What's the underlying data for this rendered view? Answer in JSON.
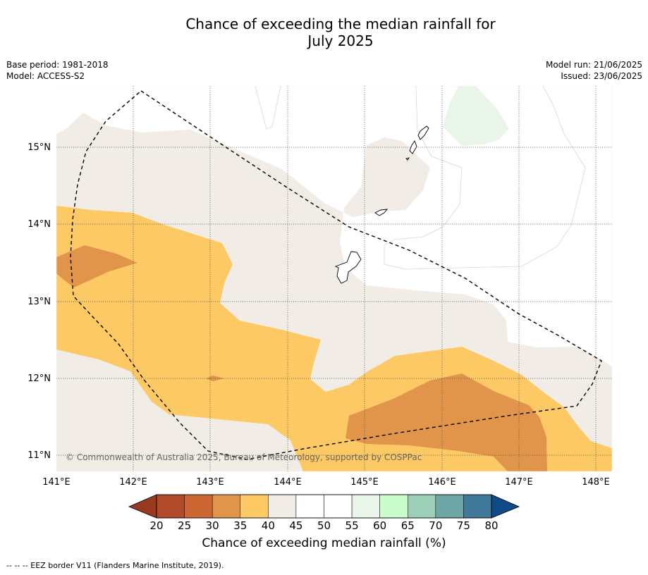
{
  "title": {
    "line1": "Chance of exceeding the median rainfall for",
    "line2": "July 2025"
  },
  "meta": {
    "base_period": "Base period: 1981-2018",
    "model": "Model: ACCESS-S2",
    "model_run": "Model run: 21/06/2025",
    "issued": "Issued: 23/06/2025"
  },
  "map": {
    "lat_ticks": [
      "15°N",
      "14°N",
      "13°N",
      "12°N",
      "11°N"
    ],
    "lon_ticks": [
      "141°E",
      "142°E",
      "143°E",
      "144°E",
      "145°E",
      "146°E",
      "147°E",
      "148°E"
    ],
    "copyright": "© Commonwealth of Australia 2025, Bureau of Meteorology, supported by COSPPac"
  },
  "colorbar": {
    "labels": [
      "20",
      "25",
      "30",
      "35",
      "40",
      "45",
      "50",
      "55",
      "60",
      "65",
      "70",
      "75",
      "80"
    ],
    "colors": [
      "#b04a28",
      "#cc6633",
      "#e0954a",
      "#fdc964",
      "#f1ece6",
      "#ffffff",
      "#ffffff",
      "#eaf5ea",
      "#cbfccb",
      "#9ccfb8",
      "#6ea6a6",
      "#41799a"
    ],
    "under_color": "#99391f",
    "over_color": "#104a87",
    "title": "Chance of exceeding median rainfall (%)"
  },
  "footer": "--  --  -- EEZ border V11 (Flanders Marine Institute, 2019)."
}
